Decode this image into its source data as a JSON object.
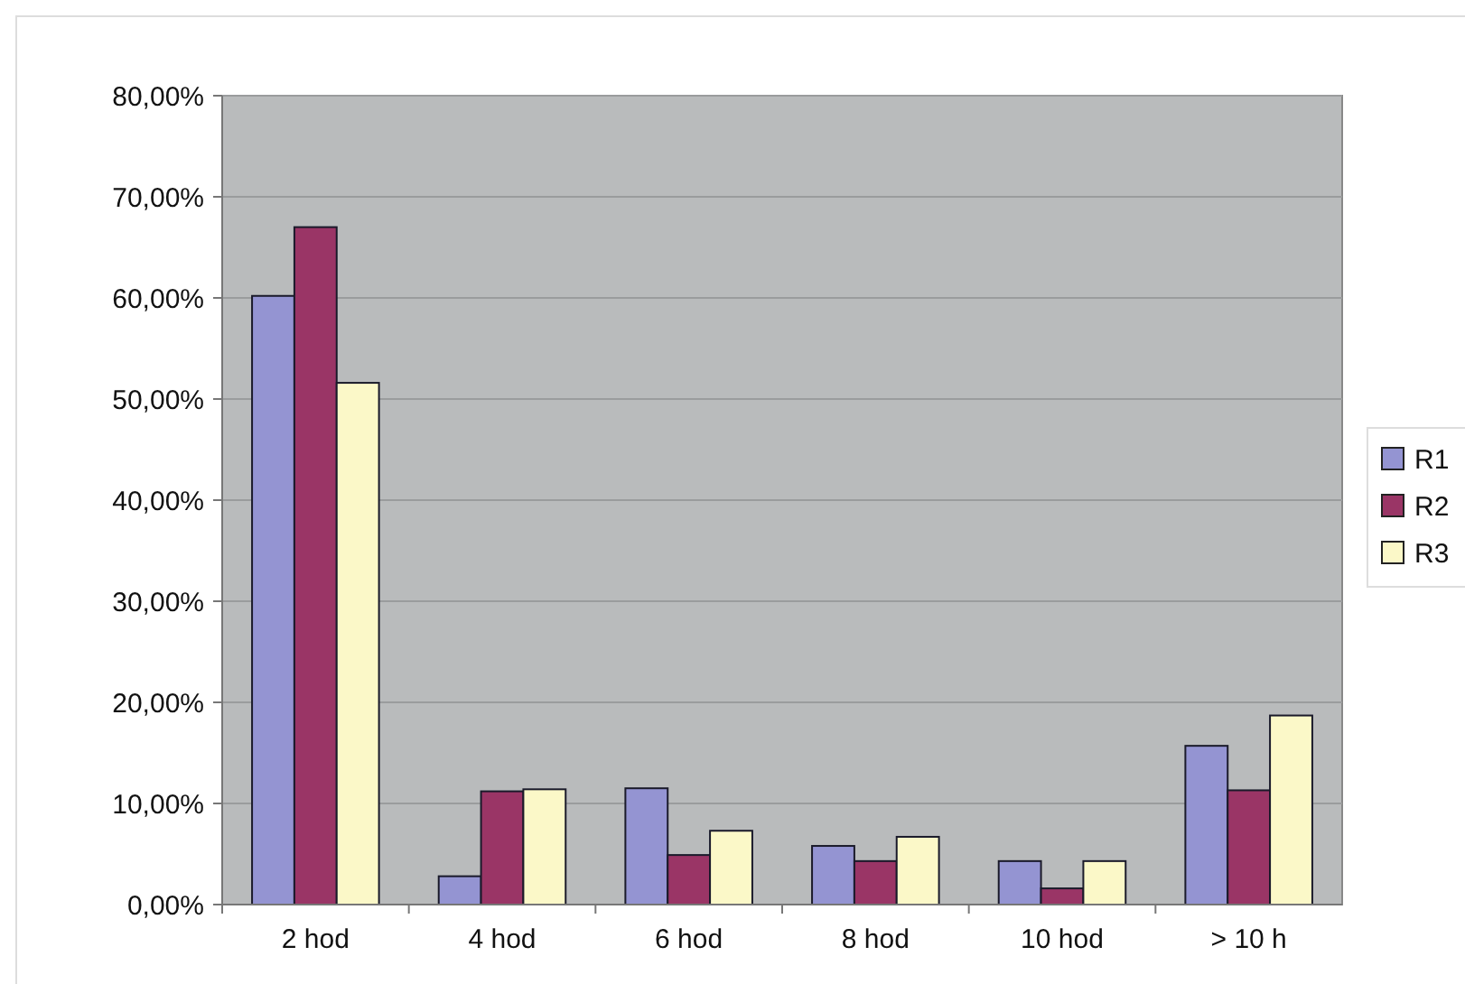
{
  "chart_data": {
    "type": "bar",
    "categories": [
      "2 hod",
      "4 hod",
      "6 hod",
      "8 hod",
      "10 hod",
      "> 10 h"
    ],
    "series": [
      {
        "name": "R1",
        "color": "#9494d2",
        "values": [
          60.2,
          2.8,
          11.5,
          5.8,
          4.3,
          15.7
        ]
      },
      {
        "name": "R2",
        "color": "#9a3566",
        "values": [
          67.0,
          11.2,
          4.9,
          4.3,
          1.6,
          11.3
        ]
      },
      {
        "name": "R3",
        "color": "#fbf8c8",
        "values": [
          51.6,
          11.4,
          7.3,
          6.7,
          4.3,
          18.7
        ]
      }
    ],
    "ylim": [
      0,
      80
    ],
    "yticks": [
      {
        "value": 0,
        "label": "0,00%"
      },
      {
        "value": 10,
        "label": "10,00%"
      },
      {
        "value": 20,
        "label": "20,00%"
      },
      {
        "value": 30,
        "label": "30,00%"
      },
      {
        "value": 40,
        "label": "40,00%"
      },
      {
        "value": 50,
        "label": "50,00%"
      },
      {
        "value": 60,
        "label": "60,00%"
      },
      {
        "value": 70,
        "label": "70,00%"
      },
      {
        "value": 80,
        "label": "80,00%"
      }
    ],
    "grid": "y",
    "legend": "right"
  }
}
